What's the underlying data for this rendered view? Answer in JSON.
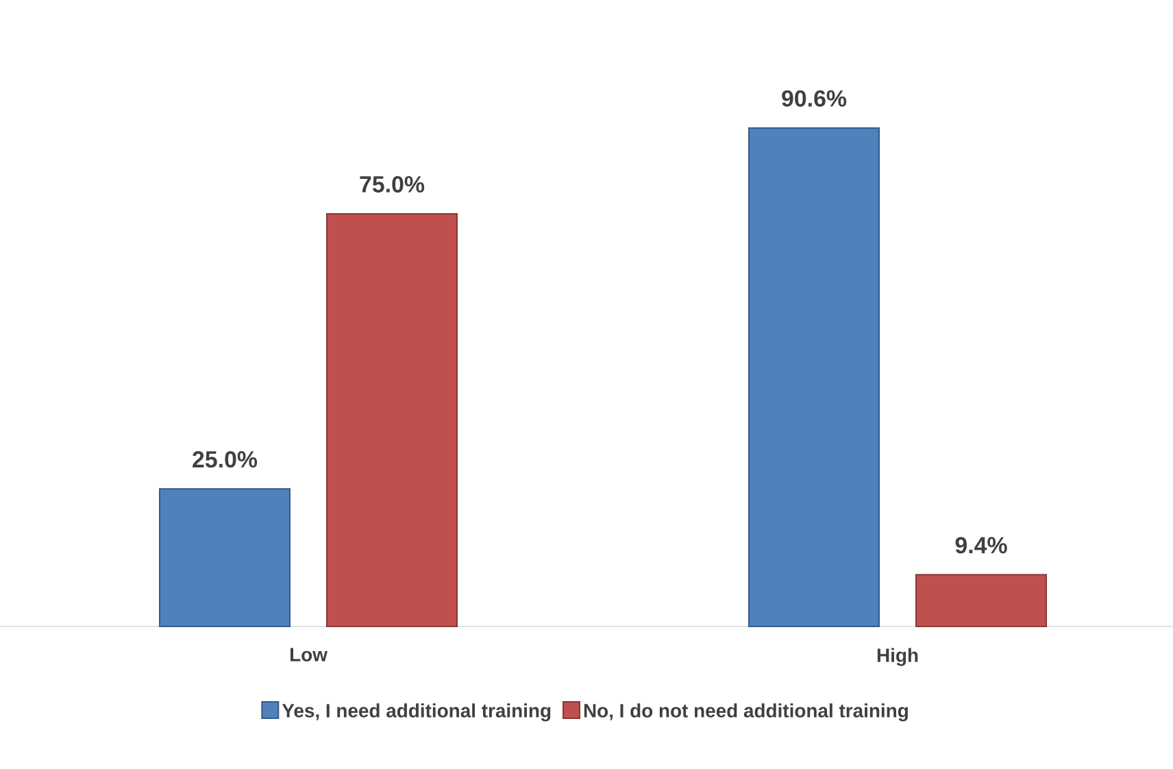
{
  "chart_data": {
    "type": "bar",
    "categories": [
      "Low",
      "High"
    ],
    "legend": "bottom",
    "series": [
      {
        "name": "Yes, I need additional training",
        "color": "#4f81bd",
        "values": [
          25.0,
          90.6
        ],
        "value_labels": [
          "25.0%",
          "90.6%"
        ]
      },
      {
        "name": "No, I do not need additional training",
        "color": "#c0504d",
        "values": [
          75.0,
          9.4
        ],
        "value_labels": [
          "75.0%",
          "9.4%"
        ]
      }
    ]
  }
}
